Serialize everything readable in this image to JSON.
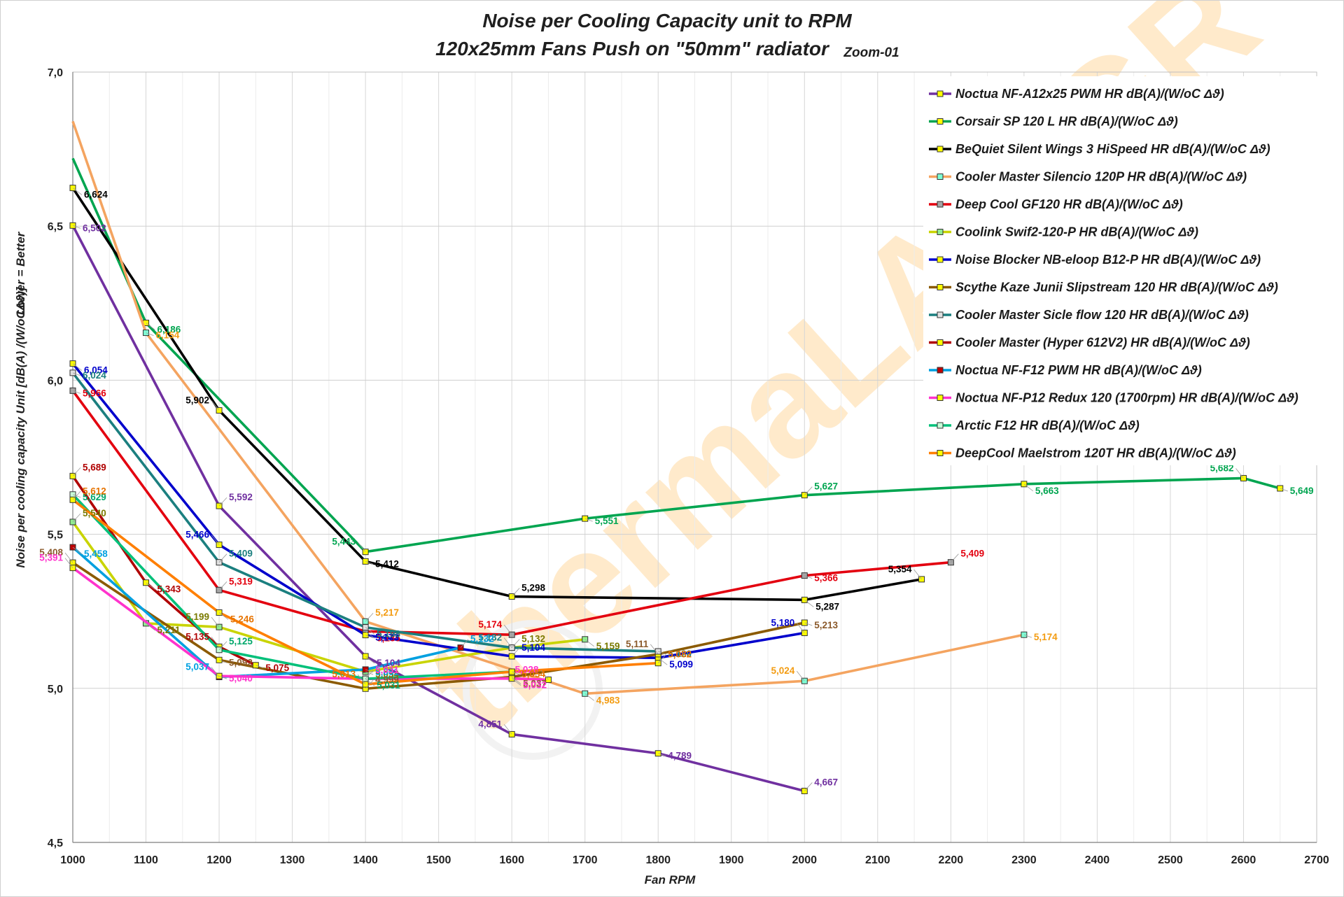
{
  "chart_data": {
    "type": "line",
    "title": "Noise  per  Cooling Capacity unit   to RPM",
    "subtitle": "120x25mm Fans Push on \"50mm\" radiator",
    "subtitle_note": "Zoom-01",
    "xlabel": "Fan RPM",
    "ylabel": "Noise  per  cooling  capacity Unit   [dB(A) /(W/oCΔϑ)]",
    "ylabel_note": "Lower = Better",
    "watermark": "thermaLAB.GR",
    "xlim": [
      1000,
      2700
    ],
    "ylim": [
      4.5,
      7.0
    ],
    "xticks": [
      "1000",
      "1100",
      "1200",
      "1300",
      "1400",
      "1500",
      "1600",
      "1700",
      "1800",
      "1900",
      "2000",
      "2100",
      "2200",
      "2300",
      "2400",
      "2500",
      "2600",
      "2700"
    ],
    "yticks": [
      "4,5",
      "5,0",
      "5,5",
      "6,0",
      "6,5",
      "7,0"
    ],
    "grid": true,
    "legend_position": "top-right",
    "series": [
      {
        "name": "Noctua NF-A12x25 PWM HR dB(A)/(W/oC Δϑ)",
        "color": "#7030a0",
        "label_color": "#7030a0",
        "marker_color": "#ffff00",
        "points": [
          [
            1000,
            6.502
          ],
          [
            1200,
            5.592
          ],
          [
            1400,
            5.104
          ],
          [
            1600,
            4.851
          ],
          [
            1800,
            4.789
          ],
          [
            2000,
            4.667
          ]
        ],
        "labels": [
          "6,502",
          "5,592",
          "5,104",
          "4,851",
          "4,789",
          "4,667"
        ]
      },
      {
        "name": "Corsair SP 120 L HR dB(A)/(W/oC Δϑ)",
        "color": "#00a550",
        "label_color": "#00a550",
        "marker_color": "#ffff00",
        "points": [
          [
            1000,
            6.72
          ],
          [
            1100,
            6.186
          ],
          [
            1400,
            5.443
          ],
          [
            1700,
            5.551
          ],
          [
            2000,
            5.627
          ],
          [
            2300,
            5.663
          ],
          [
            2600,
            5.682
          ],
          [
            2650,
            5.649
          ]
        ],
        "labels": [
          "",
          "6,186",
          "5,443",
          "5,551",
          "5,627",
          "5,663",
          "5,682",
          "5,649"
        ]
      },
      {
        "name": "BeQuiet Silent Wings 3 HiSpeed HR dB(A)/(W/oC Δϑ)",
        "color": "#000000",
        "label_color": "#000000",
        "marker_color": "#ffff00",
        "points": [
          [
            1000,
            6.624
          ],
          [
            1200,
            5.902
          ],
          [
            1400,
            5.412
          ],
          [
            1600,
            5.298
          ],
          [
            2000,
            5.287
          ],
          [
            2160,
            5.354
          ]
        ],
        "labels": [
          "6,624",
          "5,902",
          "5,412",
          "5,298",
          "5,287",
          "5,354"
        ]
      },
      {
        "name": "Cooler Master Silencio 120P HR dB(A)/(W/oC Δϑ)",
        "color": "#f4a460",
        "label_color": "#f39c12",
        "marker_color": "#7fffd4",
        "points": [
          [
            1000,
            6.84
          ],
          [
            1100,
            6.154
          ],
          [
            1400,
            5.217
          ],
          [
            1700,
            4.983
          ],
          [
            2000,
            5.024
          ],
          [
            2300,
            5.174
          ]
        ],
        "labels": [
          "",
          "6,154",
          "5,217",
          "4,983",
          "5,024",
          "5,174"
        ]
      },
      {
        "name": "Deep Cool GF120 HR dB(A)/(W/oC Δϑ)",
        "color": "#e3000f",
        "label_color": "#e3000f",
        "marker_color": "#a6a6a6",
        "points": [
          [
            1000,
            5.966
          ],
          [
            1200,
            5.319
          ],
          [
            1400,
            5.185
          ],
          [
            1600,
            5.174
          ],
          [
            2000,
            5.366
          ],
          [
            2200,
            5.409
          ]
        ],
        "labels": [
          "5,966",
          "5,319",
          "5,185",
          "5,174",
          "5,366",
          "5,409"
        ]
      },
      {
        "name": "Coolink Swif2-120-P HR dB(A)/(W/oC Δϑ)",
        "color": "#c9d400",
        "label_color": "#7a7a00",
        "marker_color": "#90ee90",
        "points": [
          [
            1000,
            5.54
          ],
          [
            1100,
            5.211
          ],
          [
            1200,
            5.199
          ],
          [
            1400,
            5.054
          ],
          [
            1600,
            5.132
          ],
          [
            1700,
            5.159
          ]
        ],
        "labels": [
          "5,540",
          "5,211",
          "5,199",
          "5,054",
          "5,132",
          "5,159"
        ]
      },
      {
        "name": "Noise Blocker NB-eloop B12-P HR dB(A)/(W/oC Δϑ)",
        "color": "#0000cc",
        "label_color": "#0000cc",
        "marker_color": "#ffff00",
        "points": [
          [
            1000,
            6.054
          ],
          [
            1200,
            5.466
          ],
          [
            1400,
            5.173
          ],
          [
            1600,
            5.104
          ],
          [
            1800,
            5.099
          ],
          [
            2000,
            5.18
          ]
        ],
        "labels": [
          "6,054",
          "5,466",
          "5,173",
          "5,104",
          "5,099",
          "5,180"
        ]
      },
      {
        "name": "Scythe Kaze Junii Slipstream  120 HR dB(A)/(W/oC Δϑ)",
        "color": "#8b5a00",
        "label_color": "#8b5a2b",
        "marker_color": "#ffff00",
        "points": [
          [
            1000,
            5.408
          ],
          [
            1200,
            5.092
          ],
          [
            1400,
            4.999
          ],
          [
            1600,
            5.037
          ],
          [
            1800,
            5.111
          ],
          [
            2000,
            5.213
          ]
        ],
        "labels": [
          "5,408",
          "5,092",
          "4,999",
          "5,037",
          "5,111",
          "5,213"
        ]
      },
      {
        "name": "Cooler Master Sicle flow 120 HR dB(A)/(W/oC Δϑ)",
        "color": "#1b7f7f",
        "label_color": "#1b7f7f",
        "marker_color": "#e0e0e0",
        "points": [
          [
            1000,
            6.024
          ],
          [
            1200,
            5.409
          ],
          [
            1400,
            5.198
          ],
          [
            1600,
            5.132
          ],
          [
            1800,
            5.12
          ]
        ],
        "labels": [
          "6,024",
          "5,409",
          "5,198",
          "5,132",
          "5,120"
        ]
      },
      {
        "name": "Cooler Master  (Hyper 612V2) HR dB(A)/(W/oC Δϑ)",
        "color": "#b00000",
        "label_color": "#b00000",
        "marker_color": "#ffff00",
        "points": [
          [
            1000,
            5.689
          ],
          [
            1100,
            5.343
          ],
          [
            1200,
            5.135
          ],
          [
            1250,
            5.075
          ]
        ],
        "labels": [
          "5,689",
          "5,343",
          "5,135",
          "5,075"
        ]
      },
      {
        "name": "Noctua NF-F12 PWM HR dB(A)/(W/oC Δϑ)",
        "color": "#00a0e0",
        "label_color": "#00a0e0",
        "marker_color": "#c00000",
        "points": [
          [
            1000,
            5.458
          ],
          [
            1200,
            5.037
          ],
          [
            1400,
            5.061
          ],
          [
            1530,
            5.132
          ]
        ],
        "labels": [
          "5,458",
          "5,037",
          "5,061",
          "5,132"
        ]
      },
      {
        "name": "Noctua NF-P12 Redux 120 (1700rpm) HR dB(A)/(W/oC Δϑ)",
        "color": "#ff33cc",
        "label_color": "#ff33cc",
        "marker_color": "#ffff00",
        "points": [
          [
            1000,
            5.391
          ],
          [
            1200,
            5.04
          ],
          [
            1400,
            5.031
          ],
          [
            1600,
            5.032
          ],
          [
            1650,
            5.028
          ]
        ],
        "labels": [
          "5,391",
          "5,040",
          "5,031",
          "5,032",
          "5,028"
        ]
      },
      {
        "name": "Arctic F12 HR dB(A)/(W/oC Δϑ)",
        "color": "#00c07a",
        "label_color": "#00a86b",
        "marker_color": "#c8ffd8",
        "points": [
          [
            1000,
            5.629
          ],
          [
            1200,
            5.125
          ],
          [
            1400,
            5.031
          ],
          [
            1600,
            5.054
          ]
        ],
        "labels": [
          "5,629",
          "5,125",
          "5,031",
          ""
        ]
      },
      {
        "name": "DeepCool Maelstrom  120T HR dB(A)/(W/oC Δϑ)",
        "color": "#ff7f00",
        "label_color": "#e67300",
        "marker_color": "#ffff00",
        "points": [
          [
            1000,
            5.612
          ],
          [
            1200,
            5.246
          ],
          [
            1400,
            5.013
          ],
          [
            1600,
            5.054
          ],
          [
            1800,
            5.082
          ]
        ],
        "labels": [
          "5,612",
          "5,246",
          "5,013",
          "5,054",
          "5,082"
        ]
      }
    ]
  }
}
